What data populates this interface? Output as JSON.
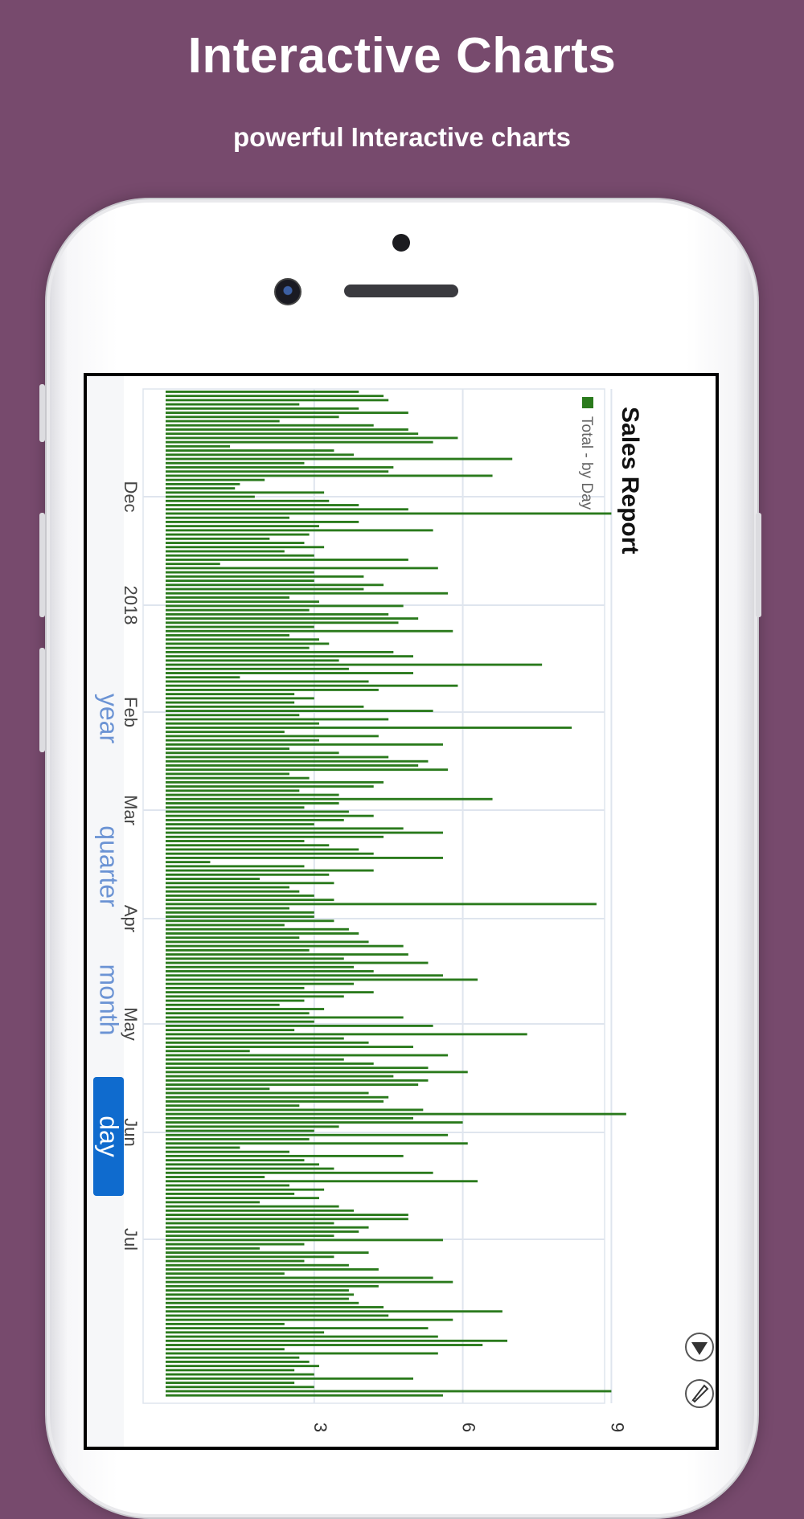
{
  "header": {
    "title": "Interactive Charts",
    "subtitle": "powerful Interactive charts"
  },
  "range_selector": {
    "options": [
      "year",
      "quarter",
      "month",
      "day"
    ],
    "selected": "day"
  },
  "colors": {
    "background": "#774a6d",
    "bar": "#2a7a1c",
    "active_button": "#0f6bce",
    "inactive_button_text": "#6b93d4"
  },
  "icons": [
    "collapse-arrow-icon",
    "rocket-icon"
  ],
  "chart_data": {
    "type": "bar",
    "orientation": "horizontal-rotated",
    "title": "Sales Report",
    "legend": "Total - by Day",
    "legend_position": "top-right",
    "value_axis_ticks": [
      "3",
      "6",
      "9"
    ],
    "value_range": [
      0,
      10
    ],
    "date_axis_ticks": [
      "Dec",
      "2018",
      "Feb",
      "Mar",
      "Apr",
      "May",
      "Jun",
      "Jul"
    ],
    "grid": true,
    "series": [
      {
        "name": "Total - by Day",
        "values": [
          3.9,
          4.4,
          4.5,
          2.7,
          3.9,
          4.9,
          3.5,
          2.3,
          4.2,
          4.9,
          5.1,
          5.9,
          5.4,
          1.3,
          3.4,
          3.8,
          7.0,
          2.8,
          4.6,
          4.5,
          6.6,
          2.0,
          1.5,
          1.4,
          3.2,
          1.8,
          3.3,
          3.9,
          4.9,
          9.0,
          2.5,
          3.9,
          3.1,
          5.4,
          2.9,
          2.1,
          2.8,
          3.2,
          2.4,
          3.0,
          4.9,
          1.1,
          5.5,
          3.0,
          4.0,
          3.0,
          4.4,
          4.0,
          5.7,
          2.5,
          3.1,
          4.8,
          2.9,
          4.5,
          5.1,
          4.7,
          3.0,
          5.8,
          2.5,
          3.1,
          3.3,
          2.9,
          4.6,
          5.0,
          3.5,
          7.6,
          3.7,
          5.0,
          1.5,
          4.1,
          5.9,
          4.3,
          2.6,
          3.0,
          2.6,
          4.0,
          5.4,
          2.7,
          4.5,
          3.1,
          8.2,
          2.4,
          4.3,
          3.1,
          5.6,
          2.5,
          3.5,
          4.5,
          5.3,
          5.1,
          5.7,
          2.5,
          2.9,
          4.4,
          4.2,
          2.7,
          3.5,
          6.6,
          3.5,
          2.8,
          3.7,
          4.2,
          3.6,
          3.0,
          4.8,
          5.6,
          4.4,
          2.8,
          3.3,
          3.9,
          4.2,
          5.6,
          0.9,
          2.8,
          4.2,
          3.3,
          1.9,
          3.4,
          2.5,
          2.7,
          3.0,
          3.4,
          8.7,
          2.5,
          3.0,
          3.0,
          3.4,
          2.4,
          3.7,
          3.9,
          2.7,
          4.1,
          4.8,
          2.9,
          4.9,
          3.6,
          5.3,
          3.8,
          4.2,
          5.6,
          6.3,
          3.8,
          2.8,
          4.2,
          3.6,
          2.8,
          2.3,
          3.2,
          2.9,
          4.8,
          3.0,
          5.4,
          2.6,
          7.3,
          3.6,
          4.1,
          5.0,
          1.7,
          5.7,
          3.6,
          4.2,
          5.3,
          6.1,
          4.6,
          5.3,
          5.1,
          2.1,
          4.1,
          4.5,
          4.4,
          2.7,
          5.2,
          9.3,
          5.0,
          6.0,
          3.5,
          3.0,
          5.7,
          2.9,
          6.1,
          1.5,
          2.5,
          4.8,
          2.8,
          3.1,
          3.4,
          5.4,
          2.0,
          6.3,
          2.5,
          3.2,
          2.6,
          3.1,
          1.9,
          3.5,
          3.8,
          4.9,
          4.9,
          3.4,
          4.1,
          3.9,
          3.4,
          5.6,
          2.8,
          1.9,
          4.1,
          3.4,
          2.8,
          3.7,
          4.3,
          2.4,
          5.4,
          5.8,
          4.3,
          3.7,
          3.8,
          3.7,
          3.9,
          4.4,
          6.8,
          4.5,
          5.8,
          2.4,
          5.3,
          3.2,
          5.5,
          6.9,
          6.4,
          2.4,
          5.5,
          2.7,
          2.9,
          3.1,
          2.6,
          3.0,
          5.0,
          2.6,
          3.0,
          9.0,
          5.6
        ]
      }
    ]
  }
}
